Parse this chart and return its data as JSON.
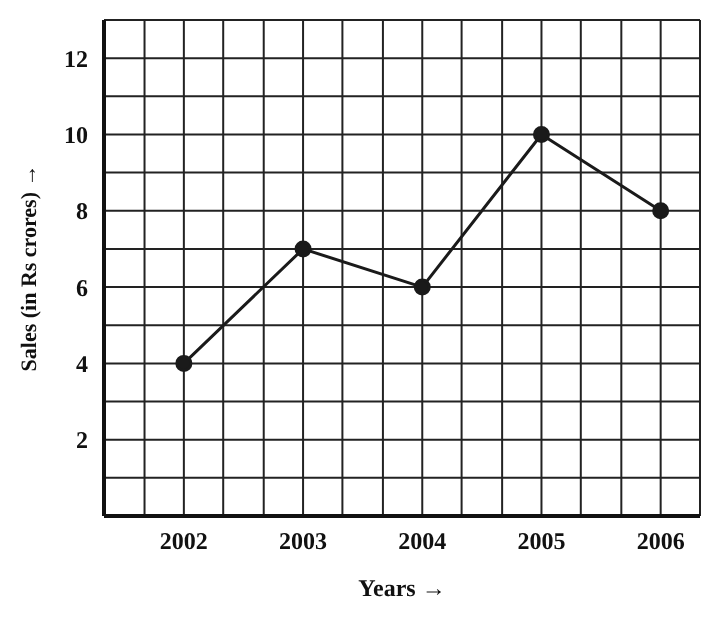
{
  "chart_data": {
    "type": "line",
    "xlabel": "Years →",
    "ylabel": "Sales (in Rs crores) →",
    "x": [
      2002,
      2003,
      2004,
      2005,
      2006
    ],
    "series": [
      {
        "color": "#1a1a1a",
        "values": [
          4,
          7,
          6,
          10,
          8
        ]
      }
    ],
    "xlim": [
      2001.33,
      2006.33
    ],
    "xticks": [
      {
        "value": 2001.67,
        "label": null
      },
      2002,
      {
        "value": 2002.33,
        "label": null
      },
      {
        "value": 2002.67,
        "label": null
      },
      2003,
      {
        "value": 2003.33,
        "label": null
      },
      {
        "value": 2003.67,
        "label": null
      },
      2004,
      {
        "value": 2004.33,
        "label": null
      },
      {
        "value": 2004.67,
        "label": null
      },
      2005,
      {
        "value": 2005.33,
        "label": null
      },
      {
        "value": 2005.67,
        "label": null
      },
      2006,
      {
        "value": 2006.33,
        "label": null
      }
    ],
    "ylim": [
      0,
      13
    ],
    "yticks": [
      {
        "value": 1,
        "label": null
      },
      2,
      {
        "value": 3,
        "label": null
      },
      4,
      {
        "value": 5,
        "label": null
      },
      6,
      {
        "value": 7,
        "label": null
      },
      8,
      {
        "value": 9,
        "label": null
      },
      10,
      {
        "value": 11,
        "label": null
      },
      12,
      {
        "value": 13,
        "label": null
      }
    ],
    "grid": true,
    "marker": "circle",
    "line_style": "solid"
  }
}
